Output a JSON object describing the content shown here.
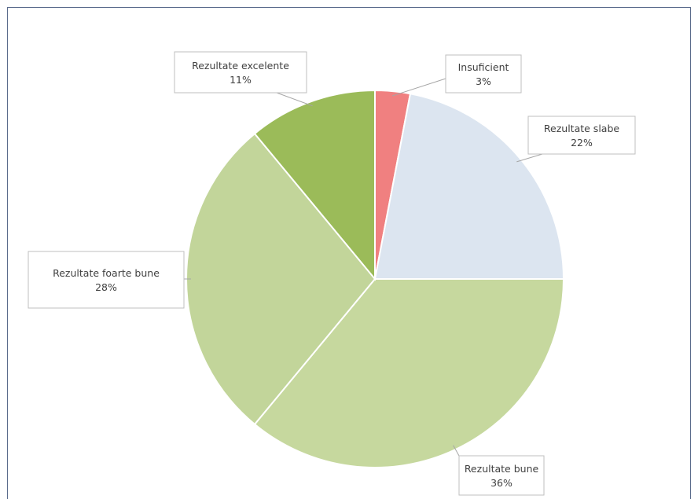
{
  "chart_data": {
    "type": "pie",
    "title": "",
    "slices": [
      {
        "label": "Insuficient",
        "value": 3,
        "value_text": "3%",
        "color": "#f08080"
      },
      {
        "label": "Rezultate slabe",
        "value": 22,
        "value_text": "22%",
        "color": "#dce5f0"
      },
      {
        "label": "Rezultate bune",
        "value": 36,
        "value_text": "36%",
        "color": "#c6d89e"
      },
      {
        "label": "Rezultate foarte bune",
        "value": 28,
        "value_text": "28%",
        "color": "#c2d59a"
      },
      {
        "label": "Rezultate excelente",
        "value": 11,
        "value_text": "11%",
        "color": "#9bbb59"
      }
    ],
    "start_angle": "12 o'clock",
    "direction": "clockwise",
    "legend": "none",
    "data_labels": "callouts with category name and percentage"
  }
}
